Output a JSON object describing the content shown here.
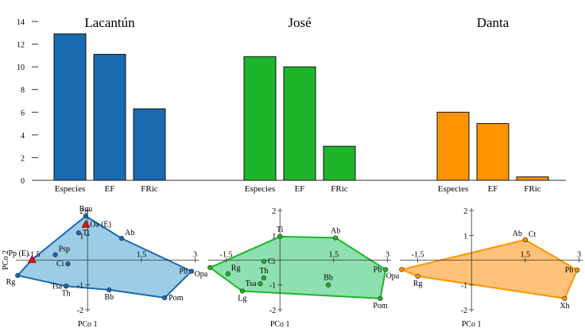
{
  "chart_data": [
    {
      "type": "bar",
      "panels": [
        {
          "title": "Lacantún",
          "categories": [
            "Especies",
            "EF",
            "FRic"
          ],
          "values": [
            12.9,
            11.1,
            6.3
          ],
          "color": "#1a6aaf"
        },
        {
          "title": "José",
          "categories": [
            "Especies",
            "EF",
            "FRic"
          ],
          "values": [
            10.9,
            10.0,
            3.0
          ],
          "color": "#1fb52a"
        },
        {
          "title": "Danta",
          "categories": [
            "Especies",
            "EF",
            "FRic"
          ],
          "values": [
            6.0,
            5.0,
            0.3
          ],
          "color": "#ff9400"
        }
      ],
      "ylim": [
        0,
        14
      ],
      "yticks": [
        "0",
        "2",
        "4",
        "6",
        "8",
        "10",
        "12",
        "14"
      ]
    },
    {
      "type": "scatter",
      "xlabel": "PCo 1",
      "ylabel": "PCo 2",
      "xlim": [
        -2,
        3.1
      ],
      "ylim": [
        -2.1,
        2.1
      ],
      "x_tick_labels": [
        {
          "v": -1.5,
          "t": "-1.5"
        },
        {
          "v": 1.5,
          "t": "1.5"
        },
        {
          "v": 3,
          "t": "3"
        }
      ],
      "y_tick_labels": [
        {
          "v": 2,
          "t": "2"
        },
        {
          "v": 1,
          "t": "1"
        },
        {
          "v": -1,
          "t": "-1"
        },
        {
          "v": -2,
          "t": "-2"
        }
      ],
      "panels": [
        {
          "name": "Lacantún",
          "stroke": "#1a6aaf",
          "fill": "#9dcde6",
          "hull": [
            "Bgu",
            "Ab",
            "Pb",
            "Pom",
            "Bb",
            "Th",
            "Rg",
            "Pp (E)"
          ],
          "points": [
            {
              "label": "Bgu",
              "x": -0.05,
              "y": 1.78,
              "shape": "circle",
              "lp": "n"
            },
            {
              "label": "Oa (E)",
              "x": -0.05,
              "y": 1.45,
              "shape": "triangle",
              "lp": "e"
            },
            {
              "label": "Ti",
              "x": -0.25,
              "y": 1.1,
              "shape": "circle",
              "lp": "e"
            },
            {
              "label": "Ab",
              "x": 0.95,
              "y": 0.88,
              "shape": "circle",
              "lp": "ne"
            },
            {
              "label": "Pp (E)",
              "x": -1.55,
              "y": 0.02,
              "shape": "triangle",
              "lp": "nw"
            },
            {
              "label": "Psp",
              "x": -0.9,
              "y": 0.22,
              "shape": "circle",
              "lp": "ne"
            },
            {
              "label": "Ci",
              "x": -0.55,
              "y": -0.15,
              "shape": "circle",
              "lp": "w"
            },
            {
              "label": "Pb",
              "x": 2.9,
              "y": -0.45,
              "shape": "circle",
              "lp": "w"
            },
            {
              "label": "Rg",
              "x": -1.95,
              "y": -0.62,
              "shape": "circle",
              "lp": "sw"
            },
            {
              "label": "Tsa",
              "x": -0.6,
              "y": -1.05,
              "shape": "circle",
              "lp": "w"
            },
            {
              "label": "Th",
              "x": -0.6,
              "y": -1.05,
              "shape": "circle",
              "lp": "s"
            },
            {
              "label": "Bb",
              "x": 0.6,
              "y": -1.2,
              "shape": "circle",
              "lp": "s"
            },
            {
              "label": "Pom",
              "x": 2.15,
              "y": -1.52,
              "shape": "circle",
              "lp": "e"
            }
          ]
        },
        {
          "name": "José",
          "stroke": "#1fb52a",
          "fill": "#8ee0b0",
          "hull": [
            "Ti",
            "Ab",
            "Pb",
            "Pom",
            "Lg",
            "Opa"
          ],
          "points": [
            {
              "label": "Ti",
              "x": 0.0,
              "y": 0.95,
              "shape": "circle",
              "lp": "n"
            },
            {
              "label": "Ab",
              "x": 1.55,
              "y": 0.9,
              "shape": "circle",
              "lp": "n"
            },
            {
              "label": "Ci",
              "x": -0.45,
              "y": -0.05,
              "shape": "circle",
              "lp": "e"
            },
            {
              "label": "Opa",
              "x": -1.95,
              "y": -0.3,
              "shape": "circle",
              "lp": "sw"
            },
            {
              "label": "Rg",
              "x": -1.45,
              "y": -0.55,
              "shape": "circle",
              "lp": "ne"
            },
            {
              "label": "Pb",
              "x": 2.95,
              "y": -0.38,
              "shape": "circle",
              "lp": "w"
            },
            {
              "label": "Th",
              "x": -0.45,
              "y": -0.72,
              "shape": "circle",
              "lp": "n"
            },
            {
              "label": "Tsa",
              "x": -0.55,
              "y": -0.95,
              "shape": "circle",
              "lp": "w"
            },
            {
              "label": "Bb",
              "x": 1.35,
              "y": -1.0,
              "shape": "circle",
              "lp": "n"
            },
            {
              "label": "Lg",
              "x": -1.05,
              "y": -1.25,
              "shape": "circle",
              "lp": "s"
            },
            {
              "label": "Pom",
              "x": 2.8,
              "y": -1.55,
              "shape": "circle",
              "lp": "s"
            }
          ]
        },
        {
          "name": "Danta",
          "stroke": "#ff9400",
          "fill": "#ffc278",
          "hull": [
            "Ct",
            "Pb",
            "Xh",
            "Rg",
            "Opa"
          ],
          "points": [
            {
              "label": "Ab",
              "x": 1.5,
              "y": 0.82,
              "shape": "circle",
              "lp": "nw"
            },
            {
              "label": "Ct",
              "x": 1.5,
              "y": 0.82,
              "shape": "circle",
              "lp": "ne"
            },
            {
              "label": "Opa",
              "x": -1.95,
              "y": -0.38,
              "shape": "circle",
              "lp": "sw"
            },
            {
              "label": "Rg",
              "x": -1.5,
              "y": -0.65,
              "shape": "circle",
              "lp": "s"
            },
            {
              "label": "Pb",
              "x": 2.95,
              "y": -0.4,
              "shape": "circle",
              "lp": "w"
            },
            {
              "label": "Xh",
              "x": 2.6,
              "y": -1.55,
              "shape": "circle",
              "lp": "s"
            }
          ]
        }
      ]
    }
  ]
}
